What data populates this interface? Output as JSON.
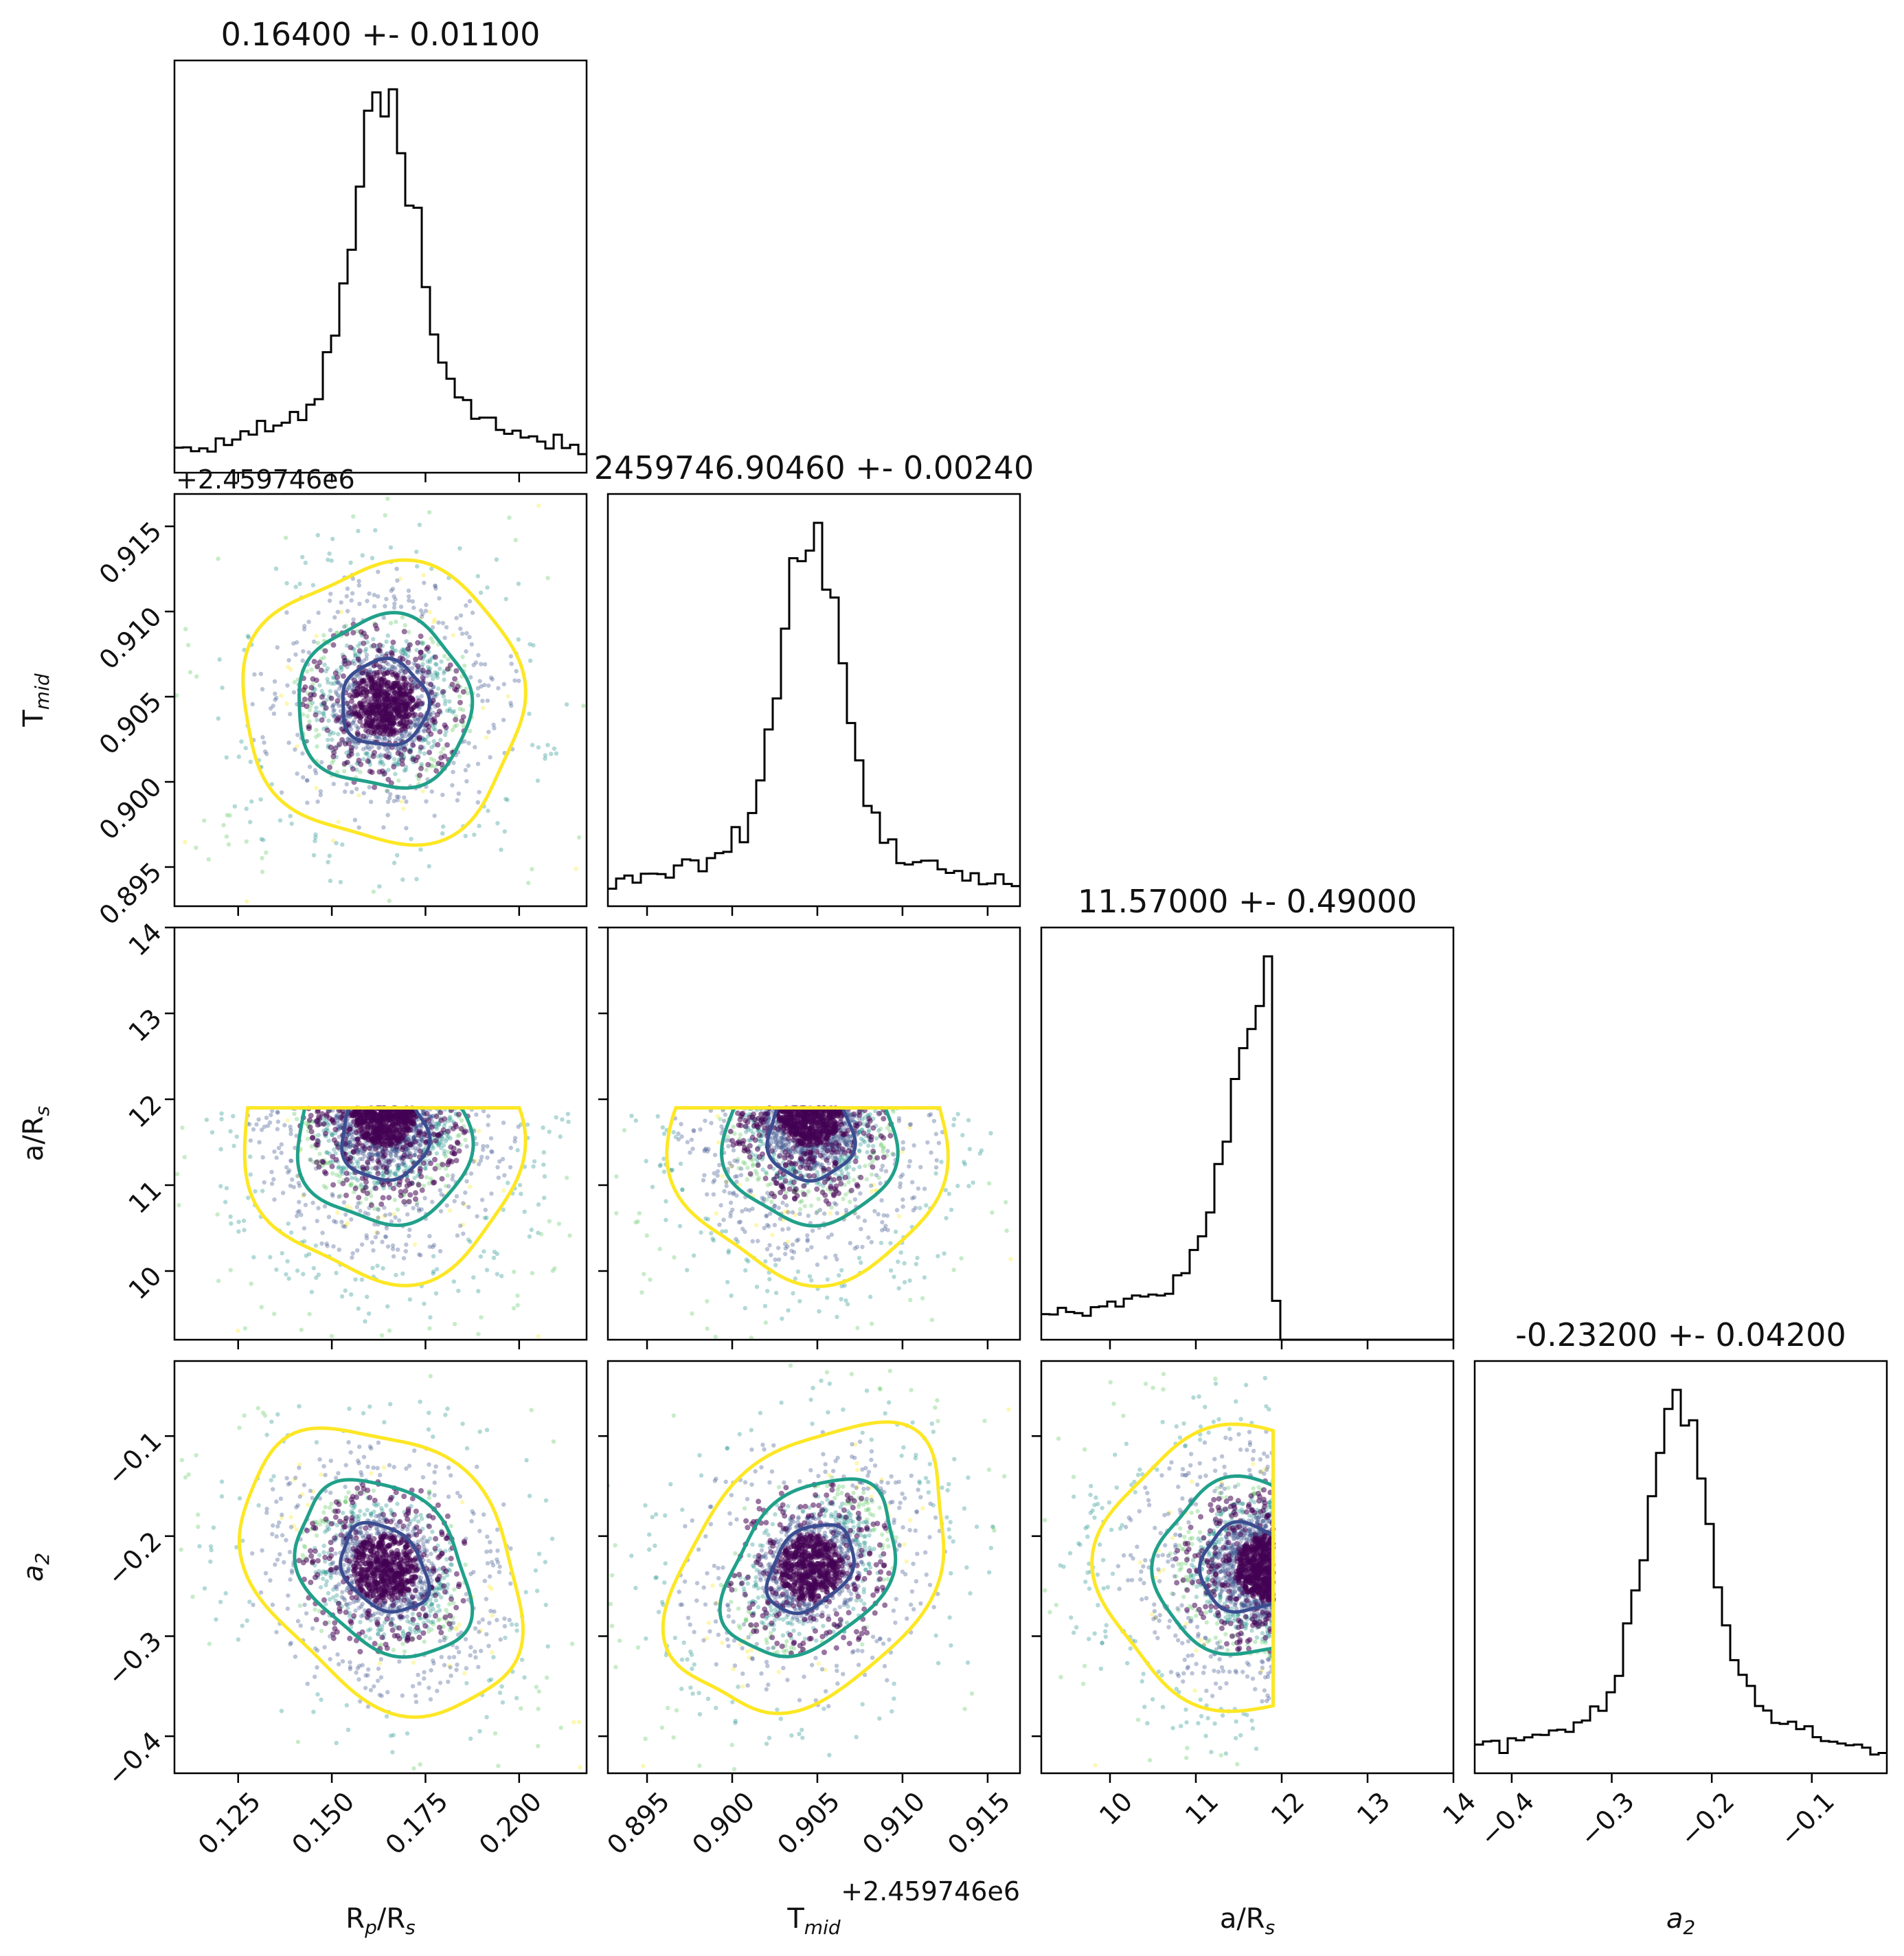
{
  "chart_data": {
    "type": "corner",
    "parameters": [
      {
        "key": "rp",
        "label": "Rp/Rs",
        "label_main": "R",
        "label_sub": "p",
        "label_tail": "/R",
        "label_tail_sub": "s",
        "range": [
          0.108,
          0.218
        ],
        "ticks": [
          0.125,
          0.15,
          0.175,
          0.2
        ],
        "tick_labels": [
          "0.125",
          "0.150",
          "0.175",
          "0.200"
        ],
        "median": 0.164,
        "sigma": 0.011,
        "title": "0.16400 +- 0.01100"
      },
      {
        "key": "tmid",
        "label": "Tmid",
        "label_main": "T",
        "label_sub": "mid",
        "label_tail": "",
        "label_tail_sub": "",
        "range": [
          0.8927,
          0.9169
        ],
        "ticks": [
          0.895,
          0.9,
          0.905,
          0.91,
          0.915
        ],
        "tick_labels": [
          "0.895",
          "0.900",
          "0.905",
          "0.910",
          "0.915"
        ],
        "offset_label": "+2.459746e6",
        "median": 0.9046,
        "sigma": 0.0024,
        "title": "2459746.90460 +- 0.00240"
      },
      {
        "key": "ars",
        "label": "a/Rs",
        "label_main": "a/R",
        "label_sub": "s",
        "label_tail": "",
        "label_tail_sub": "",
        "range": [
          9.2,
          14.0
        ],
        "ticks": [
          10,
          11,
          12,
          13,
          14
        ],
        "tick_labels": [
          "10",
          "11",
          "12",
          "13",
          "14"
        ],
        "y_ticks": [
          10,
          11,
          12,
          13,
          14
        ],
        "median": 11.57,
        "sigma": 0.49,
        "upper_bound": 11.9,
        "title": "11.57000 +- 0.49000"
      },
      {
        "key": "a2",
        "label": "a2",
        "label_main": "a",
        "label_sub": "2",
        "label_tail": "",
        "label_tail_sub": "",
        "italic": true,
        "range": [
          -0.437,
          -0.025
        ],
        "ticks": [
          -0.4,
          -0.3,
          -0.2,
          -0.1
        ],
        "tick_labels": [
          "−0.4",
          "−0.3",
          "−0.2",
          "−0.1"
        ],
        "median": -0.232,
        "sigma": 0.042,
        "title": "-0.23200 +- 0.04200"
      }
    ],
    "contour_levels": [
      "1-sigma",
      "2-sigma",
      "3-sigma"
    ],
    "colors": {
      "inner_contour": "#3b4d91",
      "mid_contour": "#21a08a",
      "outer_contour": "#fde725",
      "core_points": "#440154",
      "histogram": "#000000"
    },
    "histogram_style": "step",
    "grid": false
  }
}
